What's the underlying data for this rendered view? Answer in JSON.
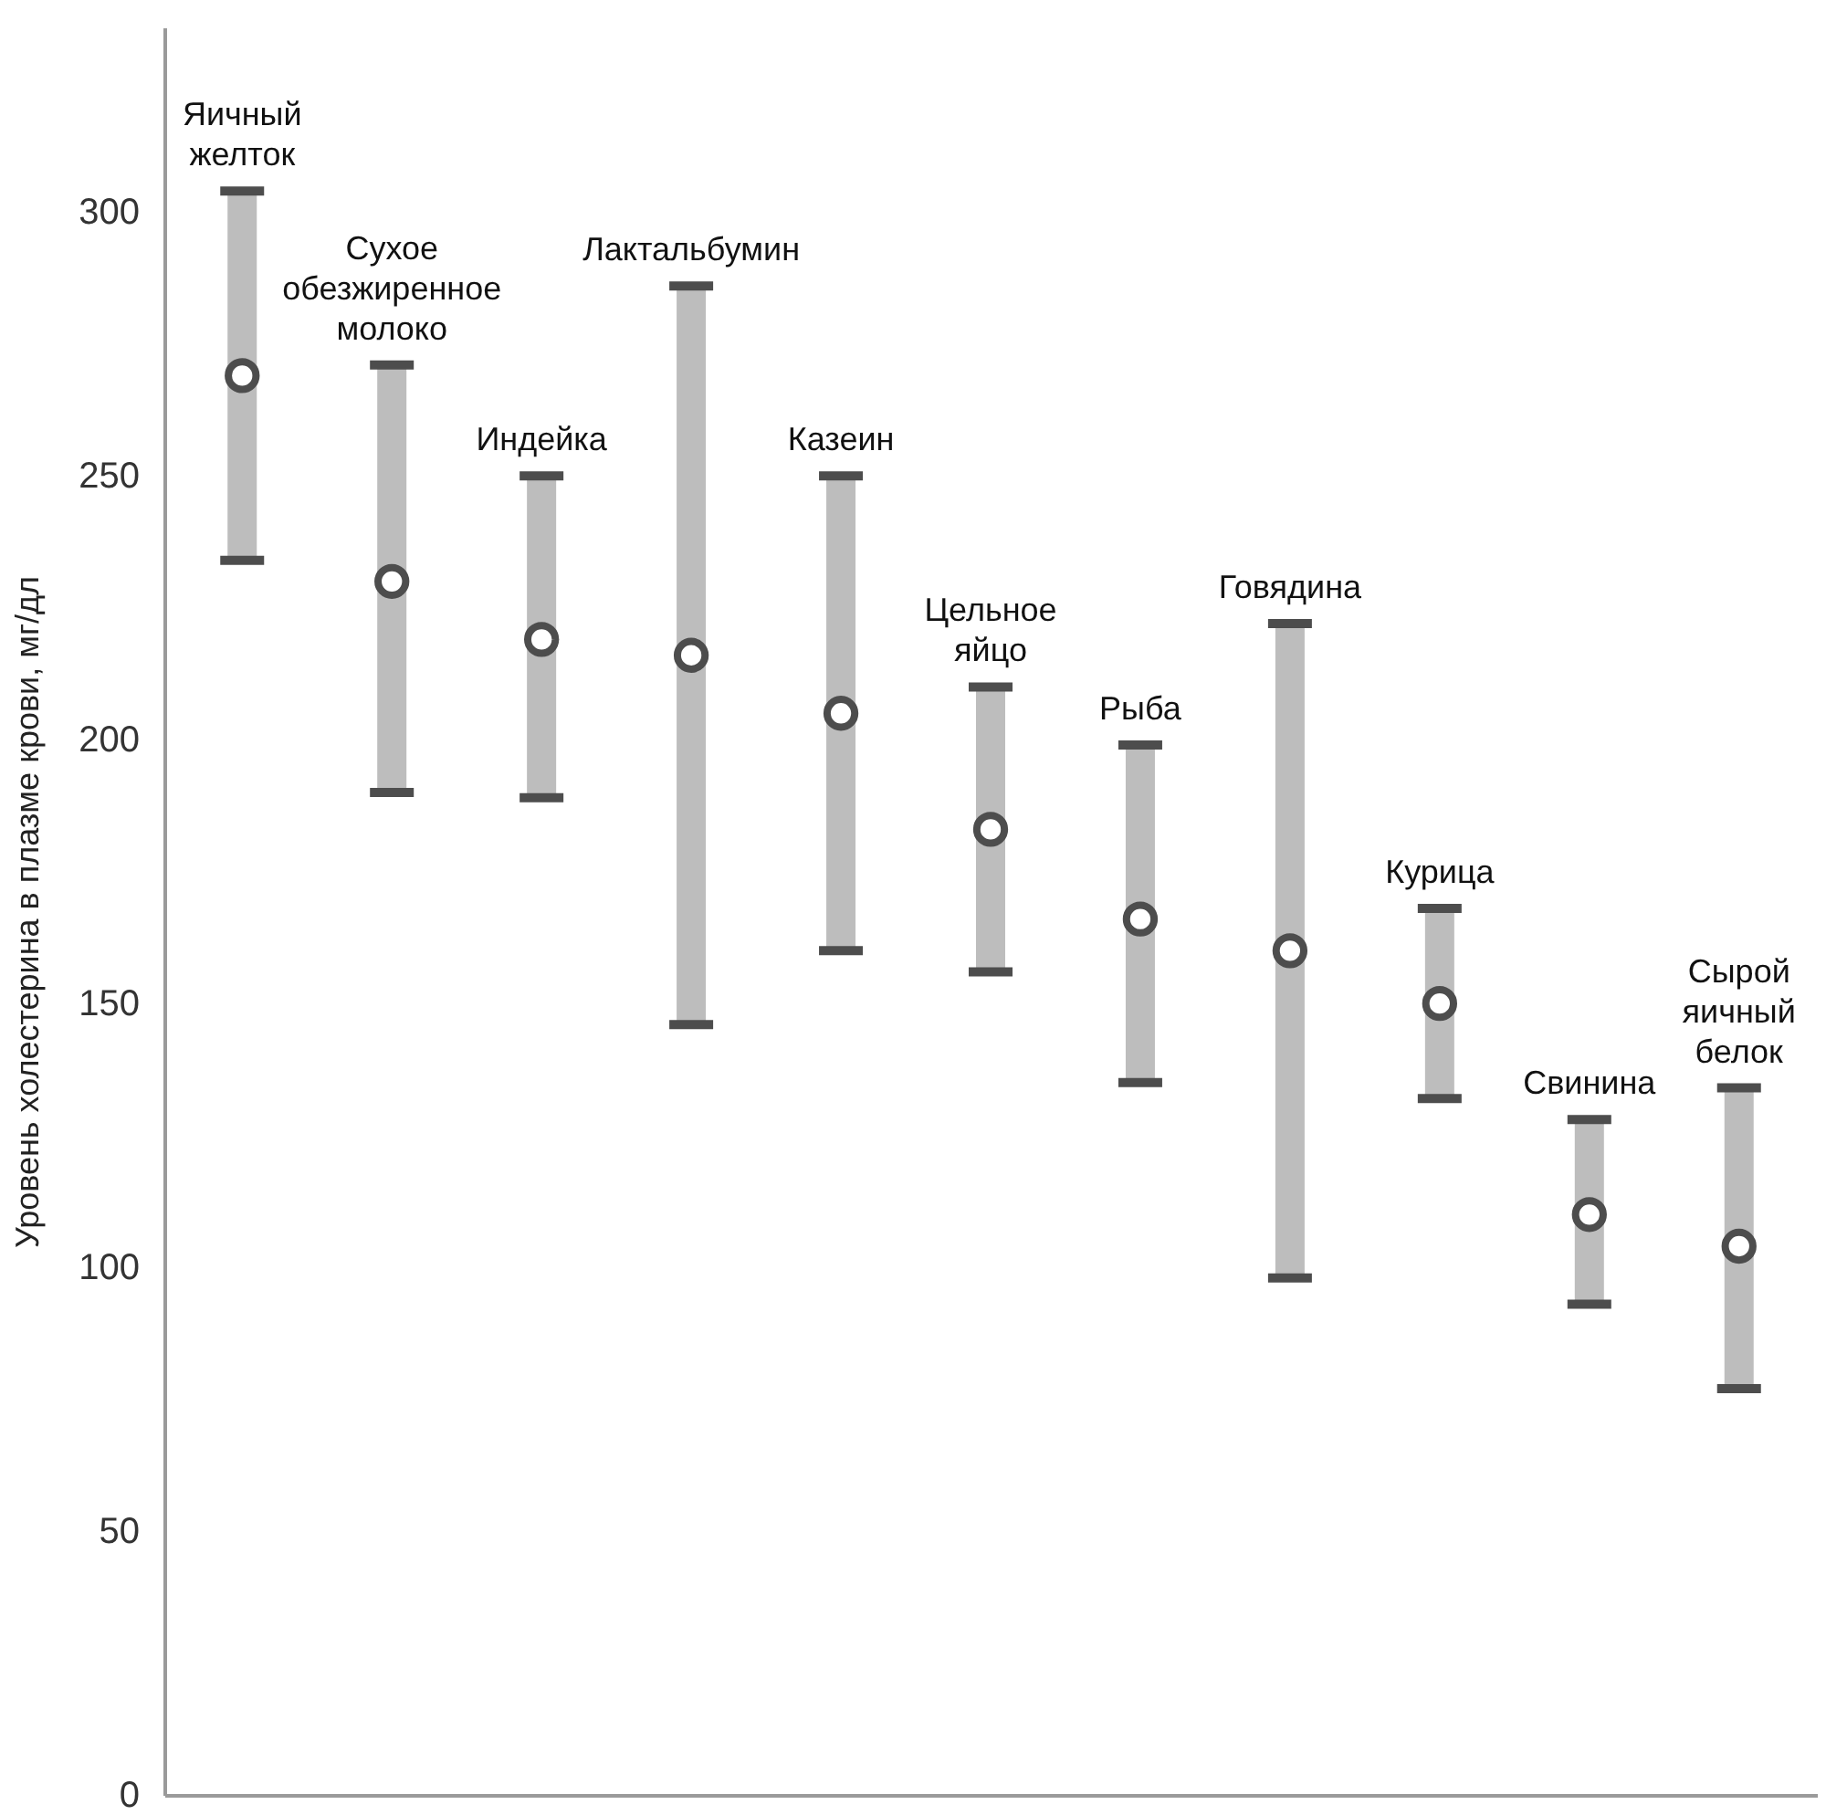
{
  "chart_data": {
    "type": "scatter",
    "ylabel": "Уровень холестерина в плазме крови, мг/дл",
    "categories": [
      "Яичный желток",
      "Сухое обезжиренное молоко",
      "Индейка",
      "Лактальбумин",
      "Казеин",
      "Цельное яйцо",
      "Рыба",
      "Говядина",
      "Курица",
      "Свинина",
      "Сырой яичный белок"
    ],
    "series": [
      {
        "color": "#4d4d4d",
        "values": [
          269,
          230,
          219,
          216,
          205,
          183,
          166,
          160,
          150,
          110,
          104
        ],
        "errors": [
          [
            234,
            304
          ],
          [
            190,
            271
          ],
          [
            189,
            250
          ],
          [
            146,
            286
          ],
          [
            160,
            250
          ],
          [
            156,
            210
          ],
          [
            135,
            199
          ],
          [
            98,
            222
          ],
          [
            132,
            168
          ],
          [
            93,
            128
          ],
          [
            77,
            134
          ]
        ]
      }
    ],
    "ylim": [
      0,
      335
    ],
    "yticks": [
      0,
      50,
      100,
      150,
      200,
      250,
      300
    ],
    "tick_labels": "y",
    "marker": "circle"
  }
}
